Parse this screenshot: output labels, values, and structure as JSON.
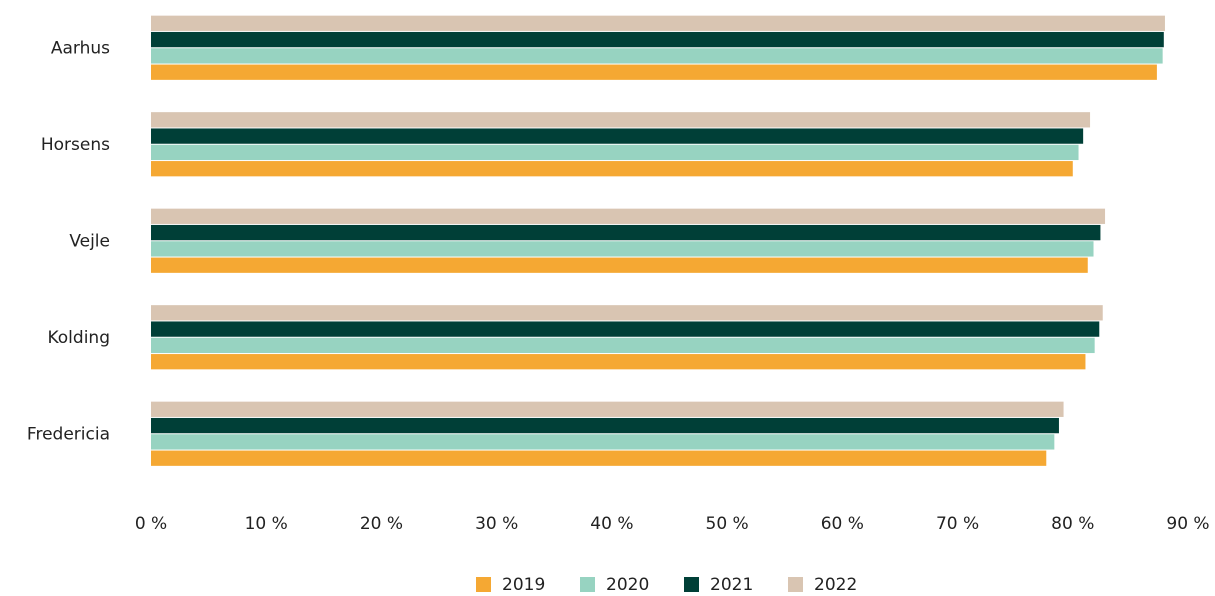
{
  "chart_data": {
    "type": "hbar",
    "categories": [
      "Aarhus",
      "Horsens",
      "Vejle",
      "Kolding",
      "Fredericia"
    ],
    "series": [
      {
        "name": "2019",
        "color": "#f5a833",
        "values": [
          87.3,
          80.0,
          81.3,
          81.1,
          77.7
        ]
      },
      {
        "name": "2020",
        "color": "#97d3c1",
        "values": [
          87.8,
          80.5,
          81.8,
          81.9,
          78.4
        ]
      },
      {
        "name": "2021",
        "color": "#003f37",
        "values": [
          87.9,
          80.9,
          82.4,
          82.3,
          78.8
        ]
      },
      {
        "name": "2022",
        "color": "#d9c5b2",
        "values": [
          88.0,
          81.5,
          82.8,
          82.6,
          79.2
        ]
      }
    ],
    "xlim": [
      0,
      90
    ],
    "xticks": [
      {
        "value": 0,
        "label": "0 %"
      },
      {
        "value": 10,
        "label": "10 %"
      },
      {
        "value": 20,
        "label": "20 %"
      },
      {
        "value": 30,
        "label": "30 %"
      },
      {
        "value": 40,
        "label": "40 %"
      },
      {
        "value": 50,
        "label": "50 %"
      },
      {
        "value": 60,
        "label": "60 %"
      },
      {
        "value": 70,
        "label": "70 %"
      },
      {
        "value": 80,
        "label": "80 %"
      },
      {
        "value": 90,
        "label": "90 %"
      }
    ],
    "legend": "bottom"
  }
}
